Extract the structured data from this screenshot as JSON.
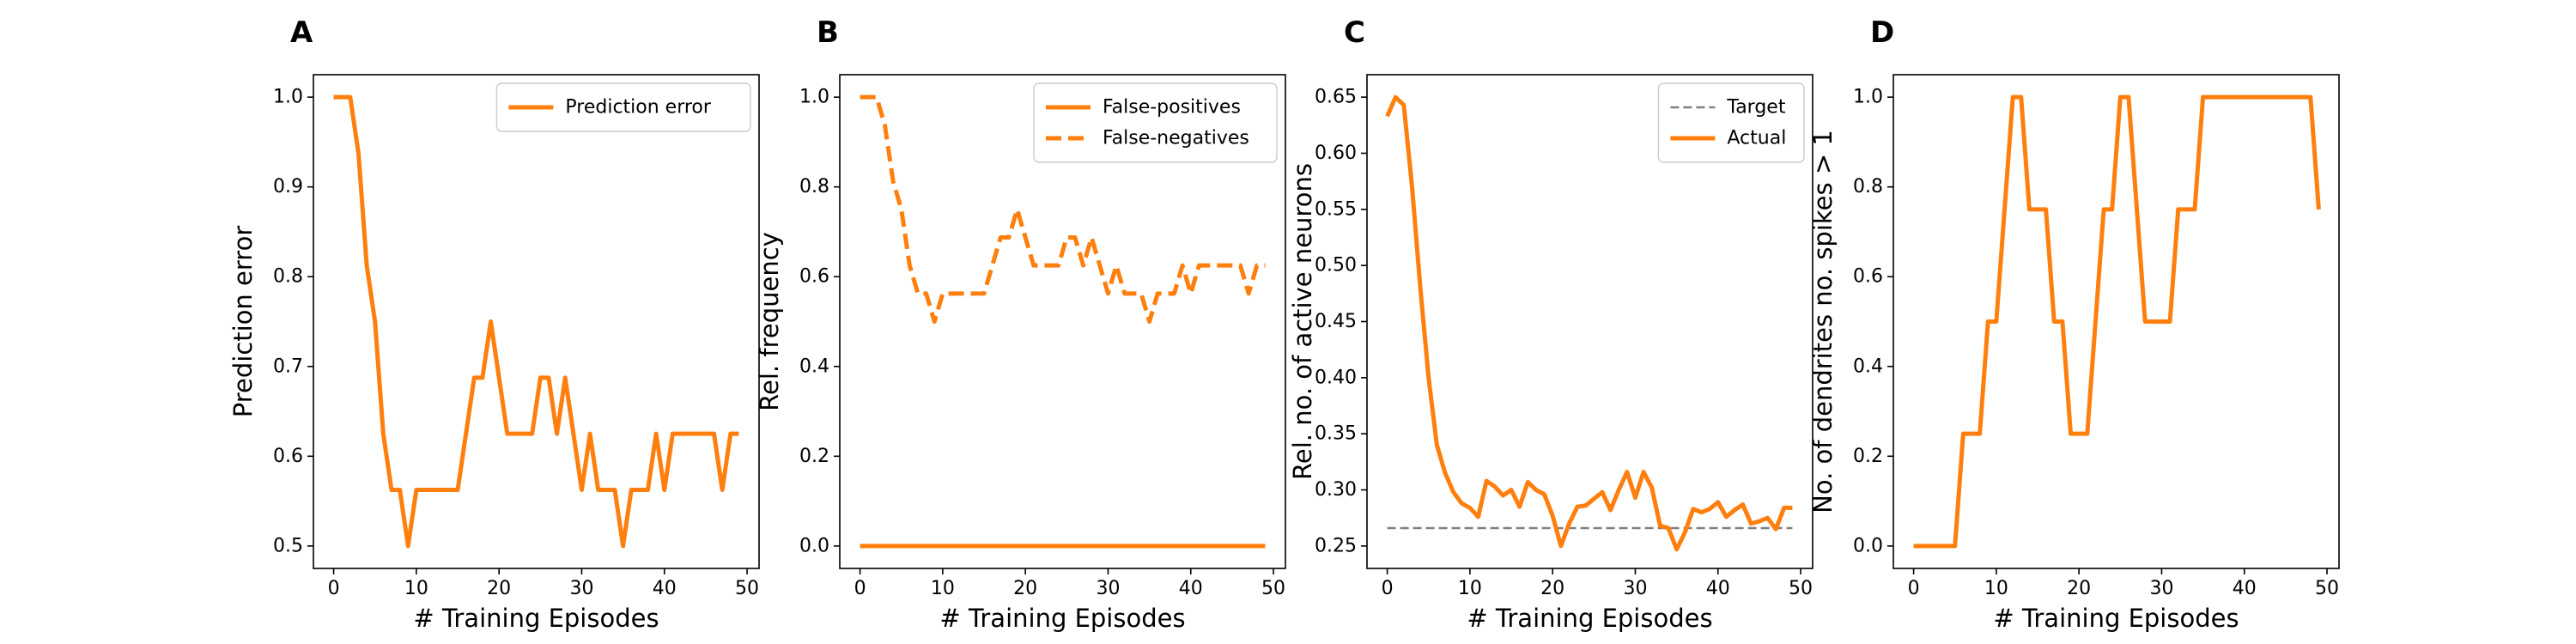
{
  "colors": {
    "series": "#ff7f0e",
    "target": "#808080",
    "axes": "#000000",
    "legend_border": "#cccccc"
  },
  "chart_data": [
    {
      "panel": "A",
      "type": "line",
      "xlabel": "# Training Episodes",
      "ylabel": "Prediction error",
      "xlim": [
        -2.45,
        51.45
      ],
      "ylim": [
        0.475,
        1.025
      ],
      "xticks": [
        0,
        10,
        20,
        30,
        40,
        50
      ],
      "xtick_labels": [
        "0",
        "10",
        "20",
        "30",
        "40",
        "50"
      ],
      "yticks": [
        0.5,
        0.6,
        0.7,
        0.8,
        0.9,
        1.0
      ],
      "ytick_labels": [
        "0.5",
        "0.6",
        "0.7",
        "0.8",
        "0.9",
        "1.0"
      ],
      "legend": {
        "position": "upper right"
      },
      "series": [
        {
          "name": "Prediction error",
          "style": "solid",
          "x": [
            0,
            1,
            2,
            3,
            4,
            5,
            6,
            7,
            8,
            9,
            10,
            11,
            12,
            13,
            14,
            15,
            16,
            17,
            18,
            19,
            20,
            21,
            22,
            23,
            24,
            25,
            26,
            27,
            28,
            29,
            30,
            31,
            32,
            33,
            34,
            35,
            36,
            37,
            38,
            39,
            40,
            41,
            42,
            43,
            44,
            45,
            46,
            47,
            48,
            49
          ],
          "y": [
            1.0,
            1.0,
            1.0,
            0.9375,
            0.8125,
            0.75,
            0.625,
            0.5625,
            0.5625,
            0.5,
            0.5625,
            0.5625,
            0.5625,
            0.5625,
            0.5625,
            0.5625,
            0.625,
            0.6875,
            0.6875,
            0.75,
            0.6875,
            0.625,
            0.625,
            0.625,
            0.625,
            0.6875,
            0.6875,
            0.625,
            0.6875,
            0.625,
            0.5625,
            0.625,
            0.5625,
            0.5625,
            0.5625,
            0.5,
            0.5625,
            0.5625,
            0.5625,
            0.625,
            0.5625,
            0.625,
            0.625,
            0.625,
            0.625,
            0.625,
            0.625,
            0.5625,
            0.625,
            0.625
          ]
        }
      ]
    },
    {
      "panel": "B",
      "type": "line",
      "xlabel": "# Training Episodes",
      "ylabel": "Rel. frequency",
      "xlim": [
        -2.45,
        51.45
      ],
      "ylim": [
        -0.05,
        1.05
      ],
      "xticks": [
        0,
        10,
        20,
        30,
        40,
        50
      ],
      "xtick_labels": [
        "0",
        "10",
        "20",
        "30",
        "40",
        "50"
      ],
      "yticks": [
        0.0,
        0.2,
        0.4,
        0.6,
        0.8,
        1.0
      ],
      "ytick_labels": [
        "0.0",
        "0.2",
        "0.4",
        "0.6",
        "0.8",
        "1.0"
      ],
      "legend": {
        "position": "upper right"
      },
      "series": [
        {
          "name": "False-positives",
          "style": "solid",
          "x": [
            0,
            1,
            2,
            3,
            4,
            5,
            6,
            7,
            8,
            9,
            10,
            11,
            12,
            13,
            14,
            15,
            16,
            17,
            18,
            19,
            20,
            21,
            22,
            23,
            24,
            25,
            26,
            27,
            28,
            29,
            30,
            31,
            32,
            33,
            34,
            35,
            36,
            37,
            38,
            39,
            40,
            41,
            42,
            43,
            44,
            45,
            46,
            47,
            48,
            49
          ],
          "y": [
            0,
            0,
            0,
            0,
            0,
            0,
            0,
            0,
            0,
            0,
            0,
            0,
            0,
            0,
            0,
            0,
            0,
            0,
            0,
            0,
            0,
            0,
            0,
            0,
            0,
            0,
            0,
            0,
            0,
            0,
            0,
            0,
            0,
            0,
            0,
            0,
            0,
            0,
            0,
            0,
            0,
            0,
            0,
            0,
            0,
            0,
            0,
            0,
            0,
            0
          ]
        },
        {
          "name": "False-negatives",
          "style": "dashed",
          "x": [
            0,
            1,
            2,
            3,
            4,
            5,
            6,
            7,
            8,
            9,
            10,
            11,
            12,
            13,
            14,
            15,
            16,
            17,
            18,
            19,
            20,
            21,
            22,
            23,
            24,
            25,
            26,
            27,
            28,
            29,
            30,
            31,
            32,
            33,
            34,
            35,
            36,
            37,
            38,
            39,
            40,
            41,
            42,
            43,
            44,
            45,
            46,
            47,
            48,
            49
          ],
          "y": [
            1.0,
            1.0,
            1.0,
            0.9375,
            0.8125,
            0.75,
            0.625,
            0.5625,
            0.5625,
            0.5,
            0.5625,
            0.5625,
            0.5625,
            0.5625,
            0.5625,
            0.5625,
            0.625,
            0.6875,
            0.6875,
            0.75,
            0.6875,
            0.625,
            0.625,
            0.625,
            0.625,
            0.6875,
            0.6875,
            0.625,
            0.6875,
            0.625,
            0.5625,
            0.625,
            0.5625,
            0.5625,
            0.5625,
            0.5,
            0.5625,
            0.5625,
            0.5625,
            0.625,
            0.5625,
            0.625,
            0.625,
            0.625,
            0.625,
            0.625,
            0.625,
            0.5625,
            0.625,
            0.625
          ]
        }
      ]
    },
    {
      "panel": "C",
      "type": "line",
      "xlabel": "# Training Episodes",
      "ylabel": "Rel. no. of active neurons",
      "xlim": [
        -2.45,
        51.45
      ],
      "ylim": [
        0.23,
        0.67
      ],
      "xticks": [
        0,
        10,
        20,
        30,
        40,
        50
      ],
      "xtick_labels": [
        "0",
        "10",
        "20",
        "30",
        "40",
        "50"
      ],
      "yticks": [
        0.25,
        0.3,
        0.35,
        0.4,
        0.45,
        0.5,
        0.55,
        0.6,
        0.65
      ],
      "ytick_labels": [
        "0.25",
        "0.30",
        "0.35",
        "0.40",
        "0.45",
        "0.50",
        "0.55",
        "0.60",
        "0.65"
      ],
      "legend": {
        "position": "upper right"
      },
      "series": [
        {
          "name": "Target",
          "style": "dashed",
          "x": [
            0,
            49
          ],
          "y": [
            0.266,
            0.266
          ]
        },
        {
          "name": "Actual",
          "style": "solid",
          "x": [
            0,
            1,
            2,
            3,
            4,
            5,
            6,
            7,
            8,
            9,
            10,
            11,
            12,
            13,
            14,
            15,
            16,
            17,
            18,
            19,
            20,
            21,
            22,
            23,
            24,
            25,
            26,
            27,
            28,
            29,
            30,
            31,
            32,
            33,
            34,
            35,
            36,
            37,
            38,
            39,
            40,
            41,
            42,
            43,
            44,
            45,
            46,
            47,
            48,
            49
          ],
          "y": [
            0.633,
            0.65,
            0.643,
            0.57,
            0.48,
            0.4,
            0.34,
            0.315,
            0.298,
            0.288,
            0.284,
            0.276,
            0.308,
            0.303,
            0.295,
            0.3,
            0.285,
            0.307,
            0.3,
            0.296,
            0.277,
            0.25,
            0.27,
            0.285,
            0.286,
            0.292,
            0.298,
            0.282,
            0.3,
            0.316,
            0.293,
            0.316,
            0.302,
            0.268,
            0.266,
            0.247,
            0.262,
            0.283,
            0.28,
            0.283,
            0.289,
            0.276,
            0.282,
            0.287,
            0.27,
            0.272,
            0.275,
            0.265,
            0.284,
            0.284
          ]
        }
      ]
    },
    {
      "panel": "D",
      "type": "line",
      "xlabel": "# Training Episodes",
      "ylabel": "No. of dendrites no. spikes > 1",
      "xlim": [
        -2.45,
        51.45
      ],
      "ylim": [
        -0.05,
        1.05
      ],
      "xticks": [
        0,
        10,
        20,
        30,
        40,
        50
      ],
      "xtick_labels": [
        "0",
        "10",
        "20",
        "30",
        "40",
        "50"
      ],
      "yticks": [
        0.0,
        0.2,
        0.4,
        0.6,
        0.8,
        1.0
      ],
      "ytick_labels": [
        "0.0",
        "0.2",
        "0.4",
        "0.6",
        "0.8",
        "1.0"
      ],
      "series": [
        {
          "name": "",
          "style": "solid",
          "x": [
            0,
            1,
            2,
            3,
            4,
            5,
            6,
            7,
            8,
            9,
            10,
            11,
            12,
            13,
            14,
            15,
            16,
            17,
            18,
            19,
            20,
            21,
            22,
            23,
            24,
            25,
            26,
            27,
            28,
            29,
            30,
            31,
            32,
            33,
            34,
            35,
            36,
            37,
            38,
            39,
            40,
            41,
            42,
            43,
            44,
            45,
            46,
            47,
            48,
            49
          ],
          "y": [
            0,
            0,
            0,
            0,
            0,
            0,
            0.25,
            0.25,
            0.25,
            0.5,
            0.5,
            0.75,
            1.0,
            1.0,
            0.75,
            0.75,
            0.75,
            0.5,
            0.5,
            0.25,
            0.25,
            0.25,
            0.5,
            0.75,
            0.75,
            1.0,
            1.0,
            0.75,
            0.5,
            0.5,
            0.5,
            0.5,
            0.75,
            0.75,
            0.75,
            1.0,
            1.0,
            1.0,
            1.0,
            1.0,
            1.0,
            1.0,
            1.0,
            1.0,
            1.0,
            1.0,
            1.0,
            1.0,
            1.0,
            0.75
          ]
        }
      ]
    }
  ]
}
